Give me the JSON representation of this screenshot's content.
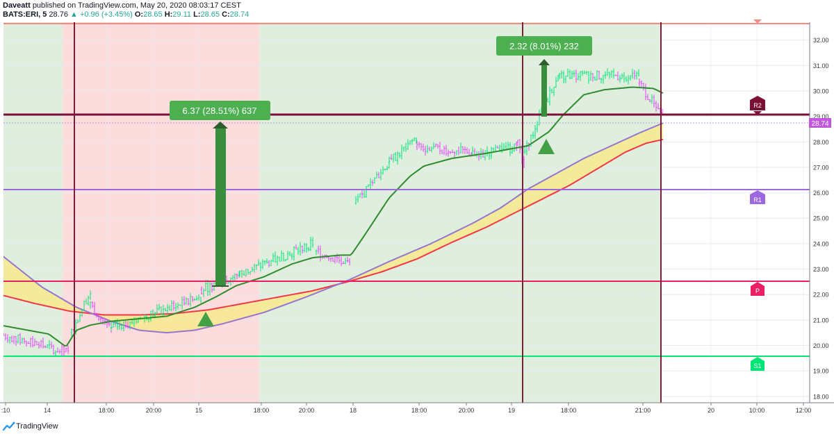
{
  "header": {
    "author": "Daveatt",
    "published_text": "published on TradingView.com, May 20, 2020 08:03:17 CEST",
    "symbol": "BATS:ERI, 5",
    "last": "28.76",
    "change": "▲ +0.96 (+3.45%)",
    "o_label": "O:",
    "o": "28.65",
    "h_label": "H:",
    "h": "29.11",
    "l_label": "L:",
    "l": "28.65",
    "c_label": "C:",
    "c": "28.74"
  },
  "footer": {
    "brand": "TradingView"
  },
  "colors": {
    "bg_green": "#dfeedd",
    "bg_red": "#fcdcdc",
    "bar_up": "#00e676",
    "bar_down": "#e040fb",
    "ema_fast": "#2e8b2e",
    "ma_red": "#f23645",
    "ma_purple": "#9575cd",
    "cloud": "#f7e98e",
    "pivot_r2": "#7b0f35",
    "pivot_r1": "#9c6ade",
    "pivot_p": "#e91e63",
    "pivot_s1": "#00e676",
    "vline": "#7b1f3d",
    "label_green": "#4caf50"
  },
  "chart_data": {
    "type": "candlestick",
    "title": "",
    "y_range": [
      17.75,
      32.7
    ],
    "y_ticks": [
      "32.00",
      "31.00",
      "30.00",
      "29.00",
      "28.00",
      "27.00",
      "26.00",
      "25.00",
      "24.00",
      "23.00",
      "22.00",
      "21.00",
      "20.00",
      "19.00",
      "18.00"
    ],
    "x_ticks": [
      ":10",
      "14",
      "18:00",
      "20:00",
      "15",
      "18:00",
      "20:00",
      "18",
      "18:00",
      "20:00",
      "19",
      "18:00",
      "21:00",
      "20",
      "10:00",
      "12:00"
    ],
    "last_price_label": "28.74",
    "pivots": [
      {
        "name": "R2",
        "value": 29.05
      },
      {
        "name": "R1",
        "value": 26.12
      },
      {
        "name": "P",
        "value": 22.55
      },
      {
        "name": "S1",
        "value": 19.6
      }
    ],
    "top_line_value": 32.65,
    "annotations": [
      {
        "text": "6.37 (28.51%) 637",
        "from": 22.3,
        "to": 28.7
      },
      {
        "text": "2.32 (8.01%) 232",
        "from": 28.95,
        "to": 31.25
      }
    ],
    "session_backgrounds": [
      "green",
      "red",
      "green",
      "green",
      "green",
      "empty"
    ],
    "ema_fast": [
      [
        0,
        20.8
      ],
      [
        40,
        20.6
      ],
      [
        70,
        20.45
      ],
      [
        95,
        19.95
      ],
      [
        110,
        20.6
      ],
      [
        130,
        20.8
      ],
      [
        160,
        20.95
      ],
      [
        200,
        21.05
      ],
      [
        240,
        21.15
      ],
      [
        280,
        21.5
      ],
      [
        310,
        21.9
      ],
      [
        340,
        22.35
      ],
      [
        380,
        22.7
      ],
      [
        420,
        23.2
      ],
      [
        450,
        23.45
      ],
      [
        490,
        23.55
      ],
      [
        505,
        23.55
      ],
      [
        525,
        24.35
      ],
      [
        560,
        25.8
      ],
      [
        590,
        26.65
      ],
      [
        610,
        27.05
      ],
      [
        650,
        27.35
      ],
      [
        700,
        27.55
      ],
      [
        740,
        27.75
      ],
      [
        760,
        27.85
      ],
      [
        790,
        28.4
      ],
      [
        810,
        29.05
      ],
      [
        840,
        29.85
      ],
      [
        870,
        30.05
      ],
      [
        910,
        30.15
      ],
      [
        940,
        30.1
      ],
      [
        955,
        29.9
      ]
    ],
    "ma_red": [
      [
        0,
        22
      ],
      [
        50,
        21.65
      ],
      [
        100,
        21.35
      ],
      [
        150,
        21.2
      ],
      [
        200,
        21.2
      ],
      [
        250,
        21.25
      ],
      [
        300,
        21.4
      ],
      [
        350,
        21.65
      ],
      [
        400,
        21.9
      ],
      [
        450,
        22.15
      ],
      [
        500,
        22.5
      ],
      [
        550,
        22.9
      ],
      [
        600,
        23.4
      ],
      [
        650,
        24.05
      ],
      [
        700,
        24.65
      ],
      [
        740,
        25.2
      ],
      [
        780,
        25.75
      ],
      [
        820,
        26.3
      ],
      [
        860,
        26.95
      ],
      [
        900,
        27.6
      ],
      [
        930,
        27.95
      ],
      [
        955,
        28.1
      ]
    ],
    "ma_purple": [
      [
        0,
        23.6
      ],
      [
        60,
        22.3
      ],
      [
        110,
        21.5
      ],
      [
        160,
        20.95
      ],
      [
        200,
        20.6
      ],
      [
        240,
        20.5
      ],
      [
        280,
        20.6
      ],
      [
        320,
        20.85
      ],
      [
        380,
        21.3
      ],
      [
        440,
        21.9
      ],
      [
        500,
        22.55
      ],
      [
        560,
        23.3
      ],
      [
        620,
        24.0
      ],
      [
        680,
        24.8
      ],
      [
        720,
        25.4
      ],
      [
        760,
        26.15
      ],
      [
        800,
        26.75
      ],
      [
        840,
        27.35
      ],
      [
        880,
        27.85
      ],
      [
        920,
        28.35
      ],
      [
        955,
        28.75
      ]
    ],
    "segments": [
      {
        "x_range": [
          5,
          100
        ],
        "y_start": 20.4,
        "y_end": 19.7,
        "direction": "down"
      },
      {
        "x_range": [
          103,
          130
        ],
        "y_start": 20.5,
        "y_end": 22.2,
        "direction": "up"
      },
      {
        "x_range": [
          130,
          160
        ],
        "y_start": 21.6,
        "y_end": 20.6,
        "direction": "down"
      },
      {
        "x_range": [
          160,
          290
        ],
        "y_start": 20.7,
        "y_end": 21.9,
        "direction": "up"
      },
      {
        "x_range": [
          290,
          345
        ],
        "y_start": 22.2,
        "y_end": 22.8,
        "direction": "up"
      },
      {
        "x_range": [
          345,
          450
        ],
        "y_start": 22.8,
        "y_end": 24.0,
        "direction": "up"
      },
      {
        "x_range": [
          455,
          505
        ],
        "y_start": 23.7,
        "y_end": 23.2,
        "direction": "down"
      },
      {
        "x_range": [
          512,
          560
        ],
        "y_start": 25.6,
        "y_end": 27.2,
        "direction": "up"
      },
      {
        "x_range": [
          560,
          600
        ],
        "y_start": 27.2,
        "y_end": 28.2,
        "direction": "up"
      },
      {
        "x_range": [
          600,
          680
        ],
        "y_start": 27.8,
        "y_end": 27.6,
        "direction": "down"
      },
      {
        "x_range": [
          680,
          745
        ],
        "y_start": 27.5,
        "y_end": 27.8,
        "direction": "up"
      },
      {
        "x_range": [
          745,
          755
        ],
        "y_start": 28.0,
        "y_end": 26.9,
        "direction": "down"
      },
      {
        "x_range": [
          755,
          805
        ],
        "y_start": 27.6,
        "y_end": 30.8,
        "direction": "up"
      },
      {
        "x_range": [
          805,
          920
        ],
        "y_start": 30.6,
        "y_end": 30.6,
        "direction": "up"
      },
      {
        "x_range": [
          920,
          955
        ],
        "y_start": 30.3,
        "y_end": 28.9,
        "direction": "down"
      }
    ]
  }
}
